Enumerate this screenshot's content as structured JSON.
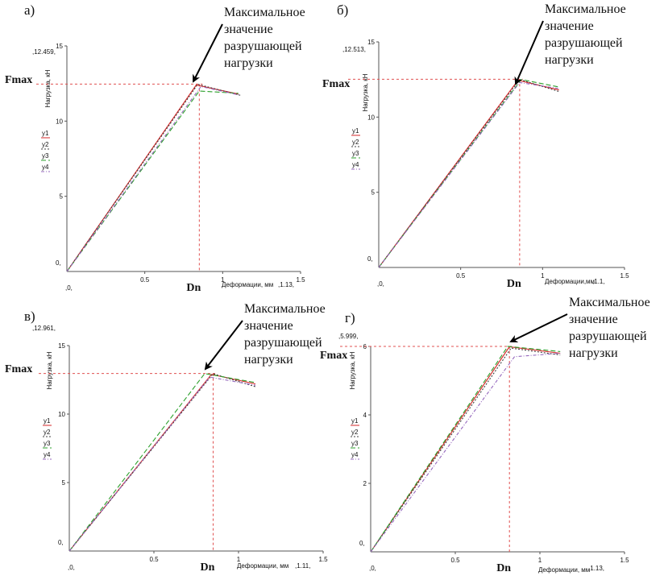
{
  "chart_data": [
    {
      "type": "line",
      "panel_label": "а)",
      "ylabel": "Нагрузка, кН",
      "xlabel": "Деформации, мм",
      "x_top_label": ",1.13,",
      "x_origin_label": ",0,",
      "y_origin_label": "0,",
      "ylim": [
        0,
        15
      ],
      "xlim": [
        0,
        1.5
      ],
      "y_ticks": [
        {
          "v": 15,
          "t": "15"
        },
        {
          "v": 10,
          "t": "10"
        },
        {
          "v": 5,
          "t": "5"
        }
      ],
      "x_ticks": [
        {
          "v": 0.5,
          "t": "0.5"
        },
        {
          "v": 1,
          "t": "1"
        },
        {
          "v": 1.5,
          "t": "1.5"
        }
      ],
      "ymax_label": ",12.459,",
      "fmax": 12.459,
      "dn": 0.85,
      "fmax_label": "Fmax",
      "dn_label": "Dn",
      "annotation": [
        "Максимальное",
        "значение",
        "разрушающей",
        "нагрузки"
      ],
      "legend": [
        "y1",
        "y2",
        "y3",
        "y4"
      ],
      "series": [
        {
          "name": "y1",
          "color": "#d62728",
          "dash": "",
          "points": [
            [
              0,
              0
            ],
            [
              0.83,
              12.4
            ],
            [
              1.1,
              11.8
            ]
          ]
        },
        {
          "name": "y2",
          "color": "#404040",
          "dash": "2,2",
          "points": [
            [
              0,
              0
            ],
            [
              0.84,
              12.45
            ],
            [
              1.12,
              11.7
            ]
          ]
        },
        {
          "name": "y3",
          "color": "#2ca02c",
          "dash": "6,3",
          "points": [
            [
              0,
              0
            ],
            [
              0.85,
              12.0
            ],
            [
              1.1,
              11.85
            ]
          ]
        },
        {
          "name": "y4",
          "color": "#9467bd",
          "dash": "4,2,1,2",
          "points": [
            [
              0,
              0
            ],
            [
              0.86,
              12.3
            ],
            [
              1.1,
              11.75
            ]
          ]
        }
      ]
    },
    {
      "type": "line",
      "panel_label": "б)",
      "ylabel": "Нагрузка, кН",
      "xlabel": "Деформации,мм",
      "x_top_label": ",1.1,",
      "x_origin_label": ",0,",
      "y_origin_label": "0,",
      "ylim": [
        0,
        15
      ],
      "xlim": [
        0,
        1.5
      ],
      "y_ticks": [
        {
          "v": 15,
          "t": "15"
        },
        {
          "v": 10,
          "t": "10"
        },
        {
          "v": 5,
          "t": "5"
        }
      ],
      "x_ticks": [
        {
          "v": 0.5,
          "t": "0.5"
        },
        {
          "v": 1,
          "t": "1"
        },
        {
          "v": 1.5,
          "t": "1.5"
        }
      ],
      "ymax_label": ",12.513,",
      "fmax": 12.513,
      "dn": 0.86,
      "fmax_label": "Fmax",
      "dn_label": "Dn",
      "annotation": [
        "Максимальное",
        "значение",
        "разрушающей",
        "нагрузки"
      ],
      "legend": [
        "y1",
        "y2",
        "y3",
        "y4"
      ],
      "series": [
        {
          "name": "y1",
          "color": "#d62728",
          "dash": "",
          "points": [
            [
              0,
              0
            ],
            [
              0.85,
              12.45
            ],
            [
              1.1,
              11.8
            ]
          ]
        },
        {
          "name": "y2",
          "color": "#404040",
          "dash": "2,2",
          "points": [
            [
              0,
              0
            ],
            [
              0.86,
              12.5
            ],
            [
              1.1,
              11.7
            ]
          ]
        },
        {
          "name": "y3",
          "color": "#2ca02c",
          "dash": "6,3",
          "points": [
            [
              0,
              0
            ],
            [
              0.87,
              12.5
            ],
            [
              1.1,
              12.0
            ]
          ]
        },
        {
          "name": "y4",
          "color": "#9467bd",
          "dash": "4,2,1,2",
          "points": [
            [
              0,
              0
            ],
            [
              0.86,
              12.3
            ],
            [
              1.1,
              11.9
            ]
          ]
        }
      ]
    },
    {
      "type": "line",
      "panel_label": "в)",
      "ylabel": "Нагрузка, кН",
      "xlabel": "Деформации, мм",
      "x_top_label": ",1.11,",
      "x_origin_label": ",0,",
      "y_origin_label": "0,",
      "ylim": [
        0,
        15
      ],
      "xlim": [
        0,
        1.5
      ],
      "y_ticks": [
        {
          "v": 15,
          "t": "15"
        },
        {
          "v": 10,
          "t": "10"
        },
        {
          "v": 5,
          "t": "5"
        }
      ],
      "x_ticks": [
        {
          "v": 0.5,
          "t": "0.5"
        },
        {
          "v": 1,
          "t": "1"
        },
        {
          "v": 1.5,
          "t": "1.5"
        }
      ],
      "ymax_label": ",12.961,",
      "fmax": 12.961,
      "dn": 0.85,
      "fmax_label": "Fmax",
      "dn_label": "Dn",
      "annotation": [
        "Максимальное",
        "значение",
        "разрушающей",
        "нагрузки"
      ],
      "legend": [
        "y1",
        "y2",
        "y3",
        "y4"
      ],
      "series": [
        {
          "name": "y1",
          "color": "#d62728",
          "dash": "",
          "points": [
            [
              0,
              0
            ],
            [
              0.84,
              12.9
            ],
            [
              1.1,
              12.2
            ]
          ]
        },
        {
          "name": "y2",
          "color": "#404040",
          "dash": "2,2",
          "points": [
            [
              0,
              0
            ],
            [
              0.85,
              12.95
            ],
            [
              1.1,
              12.0
            ]
          ]
        },
        {
          "name": "y3",
          "color": "#2ca02c",
          "dash": "6,3",
          "points": [
            [
              0,
              0
            ],
            [
              0.8,
              12.96
            ],
            [
              1.1,
              12.3
            ]
          ]
        },
        {
          "name": "y4",
          "color": "#9467bd",
          "dash": "4,2,1,2",
          "points": [
            [
              0,
              0
            ],
            [
              0.83,
              12.7
            ],
            [
              1.1,
              12.1
            ]
          ]
        }
      ]
    },
    {
      "type": "line",
      "panel_label": "г)",
      "ylabel": "Нагрузка, кН",
      "xlabel": "Деформации, мм",
      "x_top_label": ",1.13,",
      "x_origin_label": ",0,",
      "y_origin_label": "0,",
      "ylim": [
        0,
        6
      ],
      "xlim": [
        0,
        1.5
      ],
      "y_ticks": [
        {
          "v": 6,
          "t": "6"
        },
        {
          "v": 4,
          "t": "4"
        },
        {
          "v": 2,
          "t": "2"
        }
      ],
      "x_ticks": [
        {
          "v": 0.5,
          "t": "0.5"
        },
        {
          "v": 1,
          "t": "1"
        },
        {
          "v": 1.5,
          "t": "1.5"
        }
      ],
      "ymax_label": ",5.999,",
      "fmax": 5.999,
      "dn": 0.82,
      "fmax_label": "Fmax",
      "dn_label": "Dn",
      "annotation": [
        "Максимальное",
        "значение",
        "разрушающей",
        "нагрузки"
      ],
      "legend": [
        "y1",
        "y2",
        "y3",
        "y4"
      ],
      "series": [
        {
          "name": "y1",
          "color": "#d62728",
          "dash": "",
          "points": [
            [
              0,
              0
            ],
            [
              0.82,
              5.99
            ],
            [
              1.12,
              5.8
            ]
          ]
        },
        {
          "name": "y2",
          "color": "#404040",
          "dash": "2,2",
          "points": [
            [
              0,
              0
            ],
            [
              0.83,
              5.95
            ],
            [
              1.12,
              5.75
            ]
          ]
        },
        {
          "name": "y3",
          "color": "#2ca02c",
          "dash": "6,3",
          "points": [
            [
              0,
              0
            ],
            [
              0.81,
              6.0
            ],
            [
              1.12,
              5.85
            ]
          ]
        },
        {
          "name": "y4",
          "color": "#9467bd",
          "dash": "4,2,1,2",
          "points": [
            [
              0,
              0
            ],
            [
              0.85,
              5.7
            ],
            [
              1.12,
              5.8
            ]
          ]
        }
      ]
    }
  ]
}
